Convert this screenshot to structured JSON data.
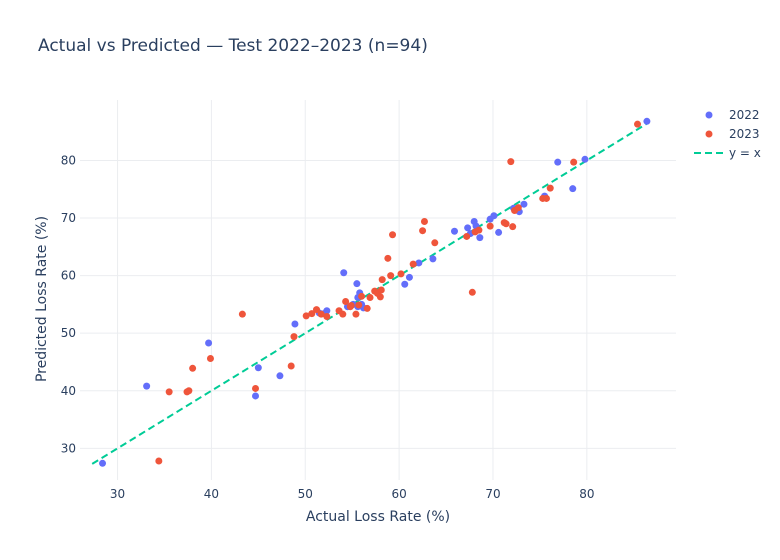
{
  "chart_data": {
    "type": "scatter",
    "title": "Actual vs Predicted — Test 2022–2023 (n=94)",
    "xlabel": "Actual Loss Rate (%)",
    "ylabel": "Predicted Loss Rate (%)",
    "xlim": [
      26,
      89.5
    ],
    "ylim": [
      24.5,
      90.5
    ],
    "xticks": [
      "30",
      "40",
      "50",
      "60",
      "70",
      "80"
    ],
    "yticks": [
      "30",
      "40",
      "50",
      "60",
      "70",
      "80"
    ],
    "grid": true,
    "legend_position": "top-right",
    "colors": {
      "s2022": "#636efa",
      "s2023": "#ef553b",
      "ref": "#00cc96"
    },
    "series": [
      {
        "name": "2022",
        "color": "#636efa",
        "x": [
          28.4,
          33.1,
          39.7,
          44.7,
          45.0,
          47.3,
          48.9,
          52.3,
          54.1,
          51.5,
          52.0,
          54.5,
          55.1,
          55.5,
          55.8,
          56.0,
          55.6,
          56.2,
          55.6,
          60.6,
          61.1,
          62.1,
          63.6,
          65.9,
          67.3,
          67.6,
          68.0,
          68.2,
          68.6,
          69.7,
          70.1,
          70.6,
          72.2,
          72.8,
          73.3,
          75.5,
          76.9,
          78.5,
          79.8,
          86.4
        ],
        "y": [
          27.4,
          40.8,
          48.3,
          39.1,
          44.0,
          42.6,
          51.6,
          53.9,
          60.5,
          53.5,
          53.4,
          54.6,
          55.0,
          58.6,
          57.0,
          55.0,
          54.6,
          54.4,
          56.2,
          58.5,
          59.7,
          62.2,
          62.9,
          67.7,
          68.3,
          67.3,
          69.4,
          68.6,
          66.6,
          69.8,
          70.4,
          67.5,
          71.7,
          71.1,
          72.4,
          73.8,
          79.7,
          75.1,
          80.2,
          86.8
        ]
      },
      {
        "name": "2023",
        "color": "#ef553b",
        "x": [
          34.4,
          35.5,
          37.4,
          37.6,
          38.0,
          39.9,
          43.3,
          44.7,
          48.5,
          48.8,
          50.1,
          50.7,
          51.2,
          51.7,
          52.3,
          54.0,
          54.3,
          54.8,
          55.4,
          55.7,
          56.6,
          56.9,
          57.4,
          58.0,
          58.2,
          58.8,
          59.1,
          59.3,
          61.5,
          62.5,
          62.7,
          63.8,
          67.2,
          67.8,
          68.1,
          68.5,
          69.7,
          71.2,
          71.4,
          71.9,
          72.1,
          72.3,
          72.7,
          75.3,
          75.7,
          76.1,
          78.6,
          85.4,
          54.9,
          53.6,
          56.0,
          57.7,
          58.1,
          60.2
        ],
        "y": [
          27.8,
          39.8,
          39.8,
          40.0,
          43.9,
          45.6,
          53.3,
          40.4,
          44.3,
          49.4,
          53.0,
          53.4,
          54.1,
          53.3,
          52.9,
          53.3,
          55.5,
          54.6,
          53.3,
          54.9,
          54.3,
          56.2,
          57.3,
          56.3,
          59.3,
          63.0,
          60.0,
          67.1,
          62.0,
          67.8,
          69.4,
          65.7,
          66.8,
          57.1,
          67.6,
          67.9,
          68.6,
          69.2,
          69.0,
          79.8,
          68.5,
          71.3,
          71.8,
          73.4,
          73.4,
          75.2,
          79.7,
          86.3,
          54.8,
          53.9,
          56.4,
          56.9,
          57.5,
          60.3
        ]
      }
    ],
    "reference_line": {
      "name": "y = x",
      "x": [
        27.3,
        86.5
      ],
      "y": [
        27.3,
        86.5
      ]
    }
  }
}
